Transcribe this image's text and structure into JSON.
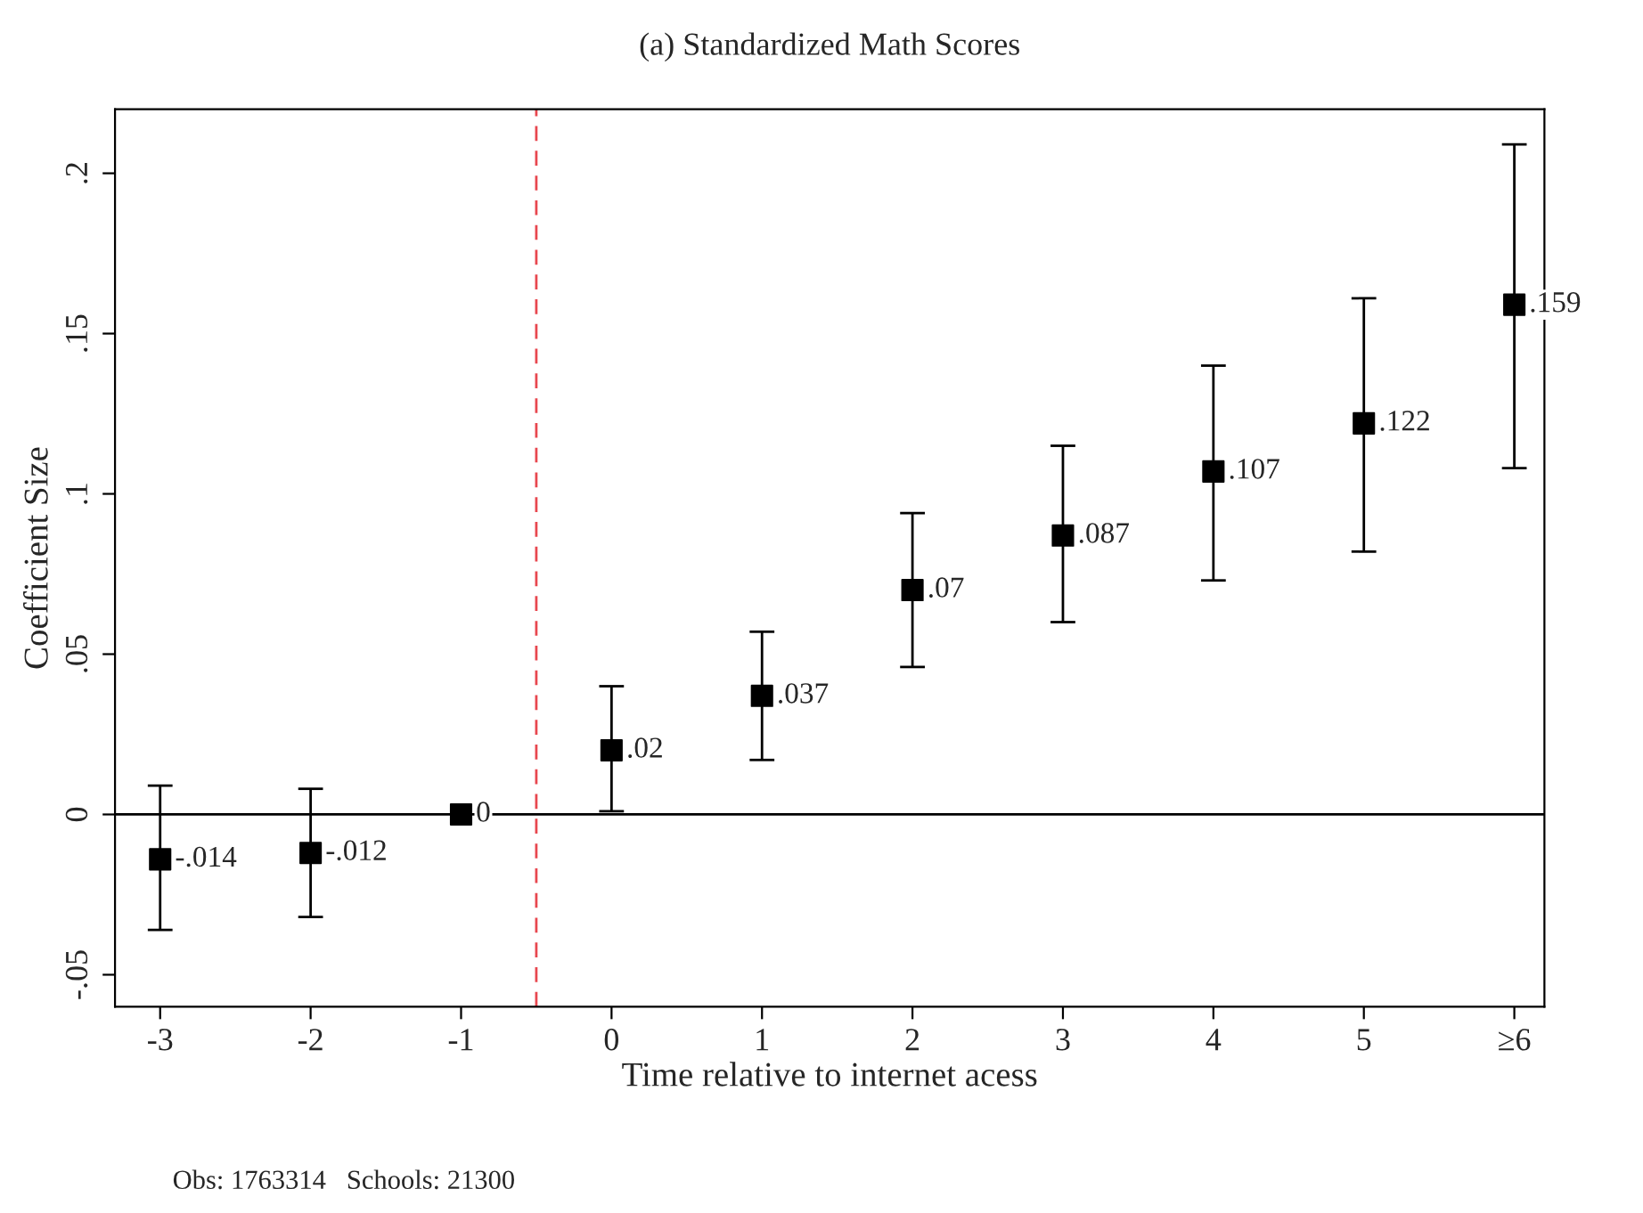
{
  "chart_data": {
    "type": "scatter",
    "title": "(a) Standardized Math Scores",
    "xlabel": "Time relative to internet acess",
    "ylabel": "Coefficient Size",
    "x": [
      -3,
      -2,
      -1,
      0,
      1,
      2,
      3,
      4,
      5,
      6
    ],
    "series": [
      {
        "color": "#000000",
        "values": [
          -0.014,
          -0.012,
          0,
          0.02,
          0.037,
          0.07,
          0.087,
          0.107,
          0.122,
          0.159
        ],
        "errors": [
          [
            -0.036,
            0.009
          ],
          [
            -0.032,
            0.008
          ],
          null,
          [
            0.001,
            0.04
          ],
          [
            0.017,
            0.057
          ],
          [
            0.046,
            0.094
          ],
          [
            0.06,
            0.115
          ],
          [
            0.073,
            0.14
          ],
          [
            0.082,
            0.161
          ],
          [
            0.108,
            0.209
          ]
        ],
        "value_labels": [
          "-.014",
          "-.012",
          "0",
          ".02",
          ".037",
          ".07",
          ".087",
          ".107",
          ".122",
          ".159"
        ]
      }
    ],
    "marker": "square",
    "grid": false,
    "legend": false,
    "xlim": [
      -3.3,
      6.2
    ],
    "xticks": [
      -3,
      -2,
      -1,
      0,
      1,
      2,
      3,
      4,
      5,
      {
        "value": 6,
        "label": "≥6"
      }
    ],
    "ylim": [
      -0.06,
      0.22
    ],
    "yticks": [
      {
        "value": -0.05,
        "label": "-.05"
      },
      0,
      {
        "value": 0.05,
        "label": ".05"
      },
      {
        "value": 0.1,
        "label": ".1"
      },
      {
        "value": 0.15,
        "label": ".15"
      },
      {
        "value": 0.2,
        "label": ".2"
      }
    ],
    "ref_lines": [
      {
        "axis": "y",
        "value": 0,
        "color": "#000000",
        "line_style": "solid"
      },
      {
        "axis": "x",
        "value": -0.5,
        "color": "#e8474f",
        "line_style": "dashed"
      }
    ],
    "annotations": [
      "Obs: 1763314   Schools: 21300"
    ]
  }
}
